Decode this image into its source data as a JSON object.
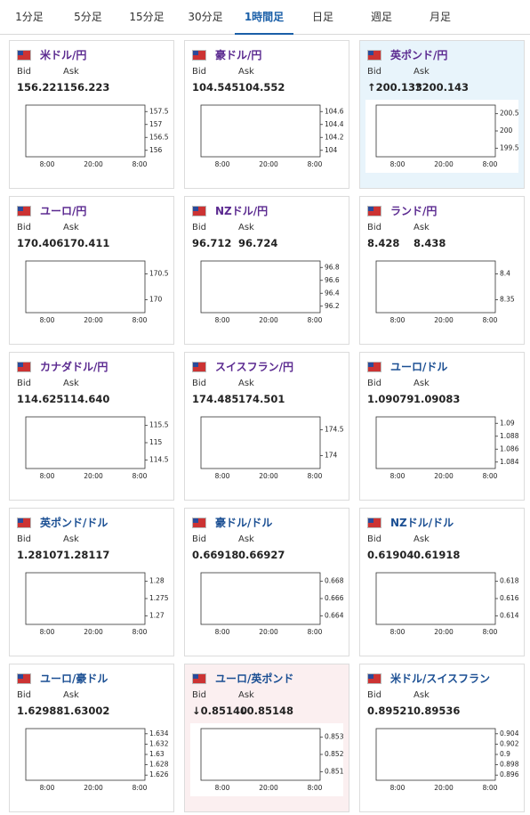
{
  "tabs": [
    {
      "label": "1分足",
      "active": false
    },
    {
      "label": "5分足",
      "active": false
    },
    {
      "label": "15分足",
      "active": false
    },
    {
      "label": "30分足",
      "active": false
    },
    {
      "label": "1時間足",
      "active": true
    },
    {
      "label": "日足",
      "active": false
    },
    {
      "label": "週足",
      "active": false
    },
    {
      "label": "月足",
      "active": false
    }
  ],
  "cards": [
    {
      "pair": "米ドル/円",
      "bid_label": "Bid",
      "ask_label": "Ask",
      "bid": "156.221",
      "ask": "156.223",
      "yticks": [
        "157.5",
        "157",
        "156.5",
        "156"
      ],
      "xticks": [
        "8:00",
        "20:00",
        "8:00"
      ]
    },
    {
      "pair": "豪ドル/円",
      "bid_label": "Bid",
      "ask_label": "Ask",
      "bid": "104.545",
      "ask": "104.552",
      "yticks": [
        "104.6",
        "104.4",
        "104.2",
        "104"
      ],
      "xticks": [
        "8:00",
        "20:00",
        "8:00"
      ]
    },
    {
      "pair": "英ポンド/円",
      "bid_label": "Bid",
      "ask_label": "Ask",
      "bid": "↑200.133",
      "ask": "↑200.143",
      "yticks": [
        "200.5",
        "200",
        "199.5"
      ],
      "xticks": [
        "8:00",
        "20:00",
        "8:00"
      ],
      "highlight": "#e8f4fb"
    },
    {
      "pair": "ユーロ/円",
      "bid_label": "Bid",
      "ask_label": "Ask",
      "bid": "170.406",
      "ask": "170.411",
      "yticks": [
        "170.5",
        "170"
      ],
      "xticks": [
        "8:00",
        "20:00",
        "8:00"
      ]
    },
    {
      "pair": "NZドル/円",
      "bid_label": "Bid",
      "ask_label": "Ask",
      "bid": "96.712",
      "ask": "96.724",
      "yticks": [
        "96.8",
        "96.6",
        "96.4",
        "96.2"
      ],
      "xticks": [
        "8:00",
        "20:00",
        "8:00"
      ]
    },
    {
      "pair": "ランド/円",
      "bid_label": "Bid",
      "ask_label": "Ask",
      "bid": "8.428",
      "ask": "8.438",
      "yticks": [
        "8.4",
        "8.35"
      ],
      "xticks": [
        "8:00",
        "20:00",
        "8:00"
      ]
    },
    {
      "pair": "カナダドル/円",
      "bid_label": "Bid",
      "ask_label": "Ask",
      "bid": "114.625",
      "ask": "114.640",
      "yticks": [
        "115.5",
        "115",
        "114.5"
      ],
      "xticks": [
        "8:00",
        "20:00",
        "8:00"
      ]
    },
    {
      "pair": "スイスフラン/円",
      "bid_label": "Bid",
      "ask_label": "Ask",
      "bid": "174.485",
      "ask": "174.501",
      "yticks": [
        "174.5",
        "174"
      ],
      "xticks": [
        "8:00",
        "20:00",
        "8:00"
      ]
    },
    {
      "pair": "ユーロ/ドル",
      "bid_label": "Bid",
      "ask_label": "Ask",
      "bid": "1.09079",
      "ask": "1.09083",
      "yticks": [
        "1.09",
        "1.088",
        "1.086",
        "1.084"
      ],
      "xticks": [
        "8:00",
        "20:00",
        "8:00"
      ]
    },
    {
      "pair": "英ポンド/ドル",
      "bid_label": "Bid",
      "ask_label": "Ask",
      "bid": "1.28107",
      "ask": "1.28117",
      "yticks": [
        "1.28",
        "1.275",
        "1.27"
      ],
      "xticks": [
        "8:00",
        "20:00",
        "8:00"
      ]
    },
    {
      "pair": "豪ドル/ドル",
      "bid_label": "Bid",
      "ask_label": "Ask",
      "bid": "0.66918",
      "ask": "0.66927",
      "yticks": [
        "0.668",
        "0.666",
        "0.664"
      ],
      "xticks": [
        "8:00",
        "20:00",
        "8:00"
      ]
    },
    {
      "pair": "NZドル/ドル",
      "bid_label": "Bid",
      "ask_label": "Ask",
      "bid": "0.61904",
      "ask": "0.61918",
      "yticks": [
        "0.618",
        "0.616",
        "0.614"
      ],
      "xticks": [
        "8:00",
        "20:00",
        "8:00"
      ]
    },
    {
      "pair": "ユーロ/豪ドル",
      "bid_label": "Bid",
      "ask_label": "Ask",
      "bid": "1.62988",
      "ask": "1.63002",
      "yticks": [
        "1.634",
        "1.632",
        "1.63",
        "1.628",
        "1.626"
      ],
      "xticks": [
        "8:00",
        "20:00",
        "8:00"
      ]
    },
    {
      "pair": "ユーロ/英ポンド",
      "bid_label": "Bid",
      "ask_label": "Ask",
      "bid": "↓0.85140",
      "ask": "↓0.85148",
      "yticks": [
        "0.853",
        "0.852",
        "0.851"
      ],
      "xticks": [
        "8:00",
        "20:00",
        "8:00"
      ],
      "highlight": "#fbeff0"
    },
    {
      "pair": "米ドル/スイスフラン",
      "bid_label": "Bid",
      "ask_label": "Ask",
      "bid": "0.89521",
      "ask": "0.89536",
      "yticks": [
        "0.904",
        "0.902",
        "0.9",
        "0.898",
        "0.896"
      ],
      "xticks": [
        "8:00",
        "20:00",
        "8:00"
      ]
    }
  ]
}
